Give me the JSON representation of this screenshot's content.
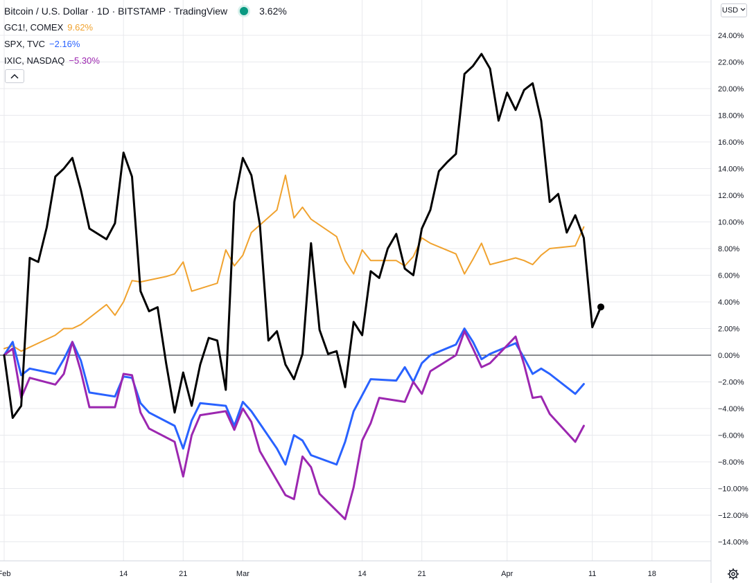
{
  "legend": {
    "title": "Bitcoin / U.S. Dollar · 1D · BITSTAMP · TradingView",
    "title_value": "3.62%",
    "title_color": "#000000",
    "items": [
      {
        "label": "GC1!, COMEX",
        "value": "9.62%",
        "color": "#f0a22e"
      },
      {
        "label": "SPX, TVC",
        "value": "−2.16%",
        "color": "#2962ff"
      },
      {
        "label": "IXIC, NASDAQ",
        "value": "−5.30%",
        "color": "#9c27b0"
      }
    ]
  },
  "currency": "USD",
  "icons": {
    "collapse": "chevron-up-icon",
    "currency_dropdown": "chevron-down-icon",
    "settings": "gear-icon"
  },
  "chart_data": {
    "type": "line",
    "y_unit": "percent",
    "ylim": [
      -14.5,
      25.5
    ],
    "y_ticks": [
      "24.00%",
      "22.00%",
      "20.00%",
      "18.00%",
      "16.00%",
      "14.00%",
      "12.00%",
      "10.00%",
      "8.00%",
      "6.00%",
      "4.00%",
      "2.00%",
      "0.00%",
      "−2.00%",
      "−4.00%",
      "−6.00%",
      "−8.00%",
      "−10.00%",
      "−12.00%",
      "−14.00%"
    ],
    "y_tick_values": [
      24,
      22,
      20,
      18,
      16,
      14,
      12,
      10,
      8,
      6,
      4,
      2,
      0,
      -2,
      -4,
      -6,
      -8,
      -10,
      -12,
      -14
    ],
    "x_ticks": [
      {
        "label": "Feb",
        "day": 0
      },
      {
        "label": "14",
        "day": 14
      },
      {
        "label": "21",
        "day": 21
      },
      {
        "label": "Mar",
        "day": 28
      },
      {
        "label": "14",
        "day": 42
      },
      {
        "label": "21",
        "day": 49
      },
      {
        "label": "Apr",
        "day": 59
      },
      {
        "label": "11",
        "day": 69
      },
      {
        "label": "18",
        "day": 76
      }
    ],
    "grid": true,
    "zero_line": true,
    "series": [
      {
        "name": "GC1!, COMEX",
        "color": "#f0a22e",
        "width": 2,
        "points": [
          [
            0,
            0.5
          ],
          [
            1,
            0.7
          ],
          [
            2,
            0.3
          ],
          [
            5,
            1.2
          ],
          [
            6,
            1.5
          ],
          [
            7,
            2.0
          ],
          [
            8,
            2.0
          ],
          [
            9,
            2.3
          ],
          [
            12,
            3.8
          ],
          [
            13,
            3.0
          ],
          [
            14,
            4.0
          ],
          [
            15,
            5.6
          ],
          [
            16,
            5.5
          ],
          [
            19,
            5.9
          ],
          [
            20,
            6.1
          ],
          [
            21,
            7.0
          ],
          [
            22,
            4.8
          ],
          [
            25,
            5.4
          ],
          [
            26,
            7.9
          ],
          [
            27,
            6.7
          ],
          [
            28,
            7.5
          ],
          [
            29,
            9.2
          ],
          [
            32,
            10.9
          ],
          [
            33,
            13.5
          ],
          [
            34,
            10.3
          ],
          [
            35,
            11.1
          ],
          [
            36,
            10.2
          ],
          [
            39,
            8.9
          ],
          [
            40,
            7.1
          ],
          [
            41,
            6.1
          ],
          [
            42,
            7.9
          ],
          [
            43,
            7.1
          ],
          [
            46,
            7.1
          ],
          [
            47,
            6.7
          ],
          [
            48,
            7.4
          ],
          [
            49,
            8.8
          ],
          [
            50,
            8.4
          ],
          [
            53,
            7.6
          ],
          [
            54,
            6.1
          ],
          [
            55,
            7.2
          ],
          [
            56,
            8.4
          ],
          [
            57,
            6.8
          ],
          [
            60,
            7.3
          ],
          [
            61,
            7.1
          ],
          [
            62,
            6.8
          ],
          [
            63,
            7.5
          ],
          [
            64,
            8.0
          ],
          [
            67,
            8.2
          ],
          [
            68,
            9.62
          ]
        ]
      },
      {
        "name": "SPX, TVC",
        "color": "#2962ff",
        "width": 3,
        "points": [
          [
            0,
            0.0
          ],
          [
            1,
            1.0
          ],
          [
            2,
            -1.5
          ],
          [
            3,
            -1.0
          ],
          [
            6,
            -1.4
          ],
          [
            7,
            -0.3
          ],
          [
            8,
            1.0
          ],
          [
            9,
            -0.4
          ],
          [
            10,
            -2.8
          ],
          [
            13,
            -3.1
          ],
          [
            14,
            -1.6
          ],
          [
            15,
            -1.7
          ],
          [
            16,
            -3.6
          ],
          [
            17,
            -4.3
          ],
          [
            20,
            -5.3
          ],
          [
            21,
            -7.0
          ],
          [
            22,
            -4.9
          ],
          [
            23,
            -3.6
          ],
          [
            26,
            -3.8
          ],
          [
            27,
            -5.3
          ],
          [
            28,
            -3.5
          ],
          [
            29,
            -4.2
          ],
          [
            32,
            -7.0
          ],
          [
            33,
            -8.2
          ],
          [
            34,
            -6.0
          ],
          [
            35,
            -6.4
          ],
          [
            36,
            -7.5
          ],
          [
            39,
            -8.2
          ],
          [
            40,
            -6.5
          ],
          [
            41,
            -4.2
          ],
          [
            42,
            -3.0
          ],
          [
            43,
            -1.8
          ],
          [
            46,
            -1.9
          ],
          [
            47,
            -0.9
          ],
          [
            48,
            -2.0
          ],
          [
            49,
            -0.6
          ],
          [
            50,
            0.0
          ],
          [
            53,
            0.8
          ],
          [
            54,
            2.0
          ],
          [
            55,
            1.0
          ],
          [
            56,
            -0.3
          ],
          [
            57,
            0.1
          ],
          [
            60,
            0.9
          ],
          [
            61,
            -0.2
          ],
          [
            62,
            -1.4
          ],
          [
            63,
            -1.0
          ],
          [
            64,
            -1.4
          ],
          [
            67,
            -2.9
          ],
          [
            68,
            -2.16
          ]
        ]
      },
      {
        "name": "IXIC, NASDAQ",
        "color": "#9c27b0",
        "width": 3,
        "points": [
          [
            0,
            0.0
          ],
          [
            1,
            0.5
          ],
          [
            2,
            -3.2
          ],
          [
            3,
            -1.7
          ],
          [
            6,
            -2.2
          ],
          [
            7,
            -1.4
          ],
          [
            8,
            1.0
          ],
          [
            9,
            -1.2
          ],
          [
            10,
            -3.9
          ],
          [
            13,
            -3.9
          ],
          [
            14,
            -1.4
          ],
          [
            15,
            -1.5
          ],
          [
            16,
            -4.3
          ],
          [
            17,
            -5.5
          ],
          [
            20,
            -6.5
          ],
          [
            21,
            -9.1
          ],
          [
            22,
            -6.0
          ],
          [
            23,
            -4.5
          ],
          [
            26,
            -4.2
          ],
          [
            27,
            -5.6
          ],
          [
            28,
            -4.0
          ],
          [
            29,
            -5.0
          ],
          [
            30,
            -7.2
          ],
          [
            33,
            -10.5
          ],
          [
            34,
            -10.8
          ],
          [
            35,
            -7.6
          ],
          [
            36,
            -8.4
          ],
          [
            37,
            -10.4
          ],
          [
            40,
            -12.3
          ],
          [
            41,
            -9.9
          ],
          [
            42,
            -6.4
          ],
          [
            43,
            -5.1
          ],
          [
            44,
            -3.2
          ],
          [
            47,
            -3.5
          ],
          [
            48,
            -2.0
          ],
          [
            49,
            -2.9
          ],
          [
            50,
            -1.2
          ],
          [
            53,
            0.0
          ],
          [
            54,
            1.8
          ],
          [
            55,
            0.5
          ],
          [
            56,
            -0.9
          ],
          [
            57,
            -0.6
          ],
          [
            60,
            1.4
          ],
          [
            61,
            -0.7
          ],
          [
            62,
            -3.2
          ],
          [
            63,
            -3.1
          ],
          [
            64,
            -4.4
          ],
          [
            67,
            -6.5
          ],
          [
            68,
            -5.3
          ]
        ]
      },
      {
        "name": "Bitcoin / U.S. Dollar",
        "color": "#000000",
        "width": 3,
        "end_marker": true,
        "points": [
          [
            0,
            0.0
          ],
          [
            1,
            -4.7
          ],
          [
            2,
            -3.8
          ],
          [
            3,
            7.3
          ],
          [
            4,
            7.0
          ],
          [
            5,
            9.6
          ],
          [
            6,
            13.4
          ],
          [
            7,
            14.0
          ],
          [
            8,
            14.8
          ],
          [
            9,
            12.4
          ],
          [
            10,
            9.5
          ],
          [
            12,
            8.7
          ],
          [
            13,
            9.9
          ],
          [
            14,
            15.2
          ],
          [
            15,
            13.4
          ],
          [
            16,
            4.8
          ],
          [
            17,
            3.3
          ],
          [
            18,
            3.6
          ],
          [
            19,
            -0.6
          ],
          [
            20,
            -4.3
          ],
          [
            21,
            -1.3
          ],
          [
            22,
            -3.8
          ],
          [
            23,
            -0.7
          ],
          [
            24,
            1.3
          ],
          [
            25,
            1.1
          ],
          [
            26,
            -2.6
          ],
          [
            27,
            11.5
          ],
          [
            28,
            14.8
          ],
          [
            29,
            13.5
          ],
          [
            30,
            9.8
          ],
          [
            31,
            1.1
          ],
          [
            32,
            1.8
          ],
          [
            33,
            -0.7
          ],
          [
            34,
            -1.8
          ],
          [
            35,
            0.1
          ],
          [
            36,
            8.4
          ],
          [
            37,
            1.9
          ],
          [
            38,
            0.1
          ],
          [
            39,
            0.3
          ],
          [
            40,
            -2.4
          ],
          [
            41,
            2.5
          ],
          [
            42,
            1.5
          ],
          [
            43,
            6.3
          ],
          [
            44,
            5.8
          ],
          [
            45,
            8.0
          ],
          [
            46,
            9.1
          ],
          [
            47,
            6.5
          ],
          [
            48,
            6.0
          ],
          [
            49,
            9.5
          ],
          [
            50,
            10.9
          ],
          [
            51,
            13.8
          ],
          [
            52,
            14.5
          ],
          [
            53,
            15.1
          ],
          [
            54,
            21.1
          ],
          [
            55,
            21.7
          ],
          [
            56,
            22.6
          ],
          [
            57,
            21.5
          ],
          [
            58,
            17.6
          ],
          [
            59,
            19.7
          ],
          [
            60,
            18.4
          ],
          [
            61,
            19.9
          ],
          [
            62,
            20.4
          ],
          [
            63,
            17.6
          ],
          [
            64,
            11.5
          ],
          [
            65,
            12.1
          ],
          [
            66,
            9.2
          ],
          [
            67,
            10.5
          ],
          [
            68,
            8.8
          ],
          [
            69,
            2.1
          ],
          [
            70,
            3.62
          ]
        ]
      }
    ]
  }
}
